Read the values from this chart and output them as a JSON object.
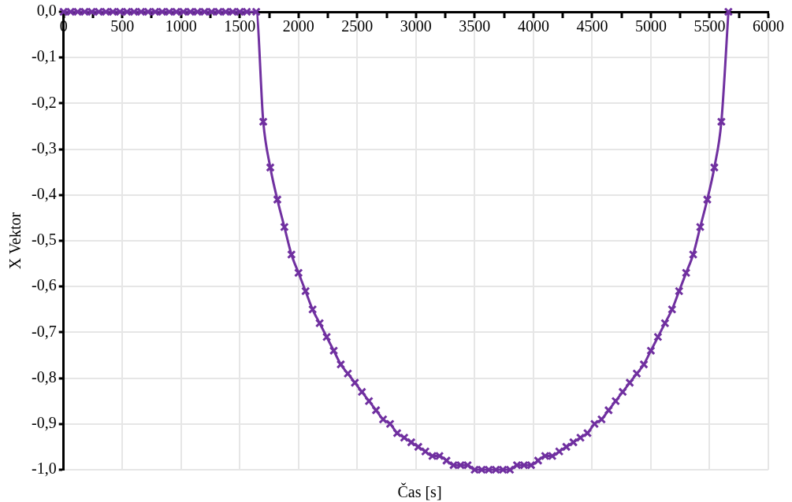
{
  "chart_data": {
    "type": "line",
    "xlabel": "Čas [s]",
    "ylabel": "X Vektor",
    "color": "#7030a0",
    "marker": "cross",
    "line_style": "solid",
    "grid": true,
    "xlim": [
      0,
      6000
    ],
    "ylim": [
      -1,
      0
    ],
    "xticks": [
      0,
      {
        "value": 250,
        "label": null
      },
      500,
      {
        "value": 750,
        "label": null
      },
      1000,
      {
        "value": 1250,
        "label": null
      },
      1500,
      {
        "value": 1750,
        "label": null
      },
      2000,
      {
        "value": 2250,
        "label": null
      },
      2500,
      {
        "value": 2750,
        "label": null
      },
      3000,
      {
        "value": 3250,
        "label": null
      },
      3500,
      {
        "value": 3750,
        "label": null
      },
      4000,
      {
        "value": 4250,
        "label": null
      },
      4500,
      {
        "value": 4750,
        "label": null
      },
      5000,
      {
        "value": 5250,
        "label": null
      },
      5500,
      {
        "value": 5750,
        "label": null
      },
      6000
    ],
    "yticks": [
      {
        "value": 0,
        "label": "0,0"
      },
      {
        "value": -0.1,
        "label": "-0,1"
      },
      {
        "value": -0.2,
        "label": "-0,2"
      },
      {
        "value": -0.3,
        "label": "-0,3"
      },
      {
        "value": -0.4,
        "label": "-0,4"
      },
      {
        "value": -0.5,
        "label": "-0,5"
      },
      {
        "value": -0.6,
        "label": "-0,6"
      },
      {
        "value": -0.7,
        "label": "-0,7"
      },
      {
        "value": -0.8,
        "label": "-0,8"
      },
      {
        "value": -0.9,
        "label": "-0,9"
      },
      {
        "value": -1,
        "label": "-1,0"
      }
    ],
    "x": [
      0,
      60,
      120,
      180,
      240,
      300,
      360,
      420,
      480,
      540,
      600,
      660,
      720,
      780,
      840,
      900,
      960,
      1020,
      1080,
      1140,
      1200,
      1260,
      1320,
      1380,
      1440,
      1500,
      1560,
      1640,
      1700,
      1760,
      1820,
      1880,
      1940,
      2000,
      2060,
      2120,
      2180,
      2240,
      2300,
      2360,
      2420,
      2480,
      2540,
      2600,
      2660,
      2720,
      2780,
      2840,
      2900,
      2960,
      3020,
      3080,
      3140,
      3200,
      3260,
      3320,
      3380,
      3440,
      3500,
      3560,
      3620,
      3680,
      3740,
      3800,
      3860,
      3920,
      3980,
      4040,
      4100,
      4160,
      4220,
      4280,
      4340,
      4400,
      4460,
      4520,
      4580,
      4640,
      4700,
      4760,
      4820,
      4880,
      4940,
      5000,
      5060,
      5120,
      5180,
      5240,
      5300,
      5360,
      5420,
      5480,
      5540,
      5600,
      5660
    ],
    "values": [
      0,
      0,
      0,
      0,
      0,
      0,
      0,
      0,
      0,
      0,
      0,
      0,
      0,
      0,
      0,
      0,
      0,
      0,
      0,
      0,
      0,
      0,
      0,
      0,
      0,
      0,
      0,
      0,
      -0.24,
      -0.34,
      -0.41,
      -0.47,
      -0.53,
      -0.57,
      -0.61,
      -0.65,
      -0.68,
      -0.71,
      -0.74,
      -0.77,
      -0.79,
      -0.81,
      -0.83,
      -0.85,
      -0.87,
      -0.89,
      -0.9,
      -0.92,
      -0.93,
      -0.94,
      -0.95,
      -0.96,
      -0.97,
      -0.97,
      -0.98,
      -0.99,
      -0.99,
      -0.99,
      -1,
      -1,
      -1,
      -1,
      -1,
      -1,
      -0.99,
      -0.99,
      -0.99,
      -0.98,
      -0.97,
      -0.97,
      -0.96,
      -0.95,
      -0.94,
      -0.93,
      -0.92,
      -0.9,
      -0.89,
      -0.87,
      -0.85,
      -0.83,
      -0.81,
      -0.79,
      -0.77,
      -0.74,
      -0.71,
      -0.68,
      -0.65,
      -0.61,
      -0.57,
      -0.53,
      -0.47,
      -0.41,
      -0.34,
      -0.24,
      0
    ]
  }
}
